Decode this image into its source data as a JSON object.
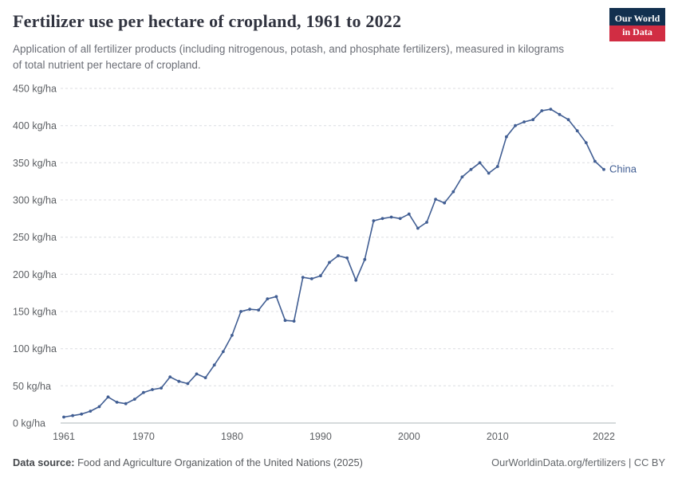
{
  "header": {
    "title": "Fertilizer use per hectare of cropland, 1961 to 2022",
    "subtitle": "Application of all fertilizer products (including nitrogenous, potash, and phosphate fertilizers), measured in kilograms of total nutrient per hectare of cropland.",
    "logo_line1": "Our World",
    "logo_line2": "in Data",
    "logo_bg": "#12304f",
    "logo_accent": "#d12d43"
  },
  "chart_data": {
    "type": "line",
    "title": "Fertilizer use per hectare of cropland, 1961 to 2022",
    "xlabel": "",
    "ylabel": "kg/ha",
    "ylim": [
      0,
      450
    ],
    "ytick_step": 50,
    "ytick_suffix": " kg/ha",
    "xticks": [
      1961,
      1970,
      1980,
      1990,
      2000,
      2010,
      2022
    ],
    "grid": "horizontal-dashed",
    "legend_position": "end-of-line",
    "years": [
      1961,
      1962,
      1963,
      1964,
      1965,
      1966,
      1967,
      1968,
      1969,
      1970,
      1971,
      1972,
      1973,
      1974,
      1975,
      1976,
      1977,
      1978,
      1979,
      1980,
      1981,
      1982,
      1983,
      1984,
      1985,
      1986,
      1987,
      1988,
      1989,
      1990,
      1991,
      1992,
      1993,
      1994,
      1995,
      1996,
      1997,
      1998,
      1999,
      2000,
      2001,
      2002,
      2003,
      2004,
      2005,
      2006,
      2007,
      2008,
      2009,
      2010,
      2011,
      2012,
      2013,
      2014,
      2015,
      2016,
      2017,
      2018,
      2019,
      2020,
      2021,
      2022
    ],
    "series": [
      {
        "name": "China",
        "color": "#415e93",
        "values": [
          8,
          10,
          12,
          16,
          22,
          35,
          28,
          26,
          32,
          41,
          45,
          47,
          62,
          56,
          53,
          66,
          61,
          78,
          96,
          118,
          150,
          153,
          152,
          167,
          170,
          138,
          137,
          196,
          194,
          198,
          216,
          225,
          222,
          192,
          220,
          272,
          275,
          277,
          275,
          281,
          262,
          270,
          301,
          296,
          311,
          331,
          341,
          350,
          336,
          345,
          385,
          400,
          405,
          408,
          420,
          422,
          415,
          408,
          393,
          377,
          352,
          341
        ]
      }
    ]
  },
  "footer": {
    "source_label": "Data source:",
    "source_text": "Food and Agriculture Organization of the United Nations (2025)",
    "credit": "OurWorldinData.org/fertilizers | CC BY"
  }
}
